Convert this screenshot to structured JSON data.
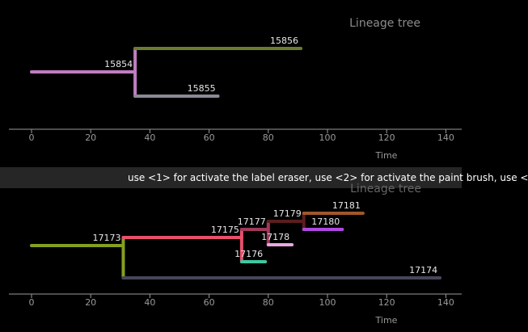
{
  "status_bar": {
    "message": "use <1> for activate the label eraser, use <2> for activate the paint brush, use <"
  },
  "chart_data": [
    {
      "type": "line",
      "title": "Lineage tree",
      "xlabel": "Time",
      "xlim": [
        -10,
        145
      ],
      "xticks": [
        0,
        20,
        40,
        60,
        80,
        100,
        120,
        140
      ],
      "grid": false,
      "tracks": [
        {
          "label": "15854",
          "x_start": 0,
          "x_end": 35,
          "level": 0.5,
          "color": "#c07ec0"
        },
        {
          "label": "15856",
          "x_start": 35,
          "x_end": 91,
          "level": 1,
          "color": "#6b7c2e"
        },
        {
          "label": "15855",
          "x_start": 35,
          "x_end": 63,
          "level": 0,
          "color": "#8a8a96"
        }
      ],
      "branches": [
        {
          "x": 35,
          "from_level": 0,
          "to_level": 1,
          "color": "#c07ec0"
        }
      ]
    },
    {
      "type": "line",
      "title": "Lineage tree",
      "xlabel": "Time",
      "xlim": [
        -10,
        145
      ],
      "xticks": [
        0,
        20,
        40,
        60,
        80,
        100,
        120,
        140
      ],
      "grid": false,
      "tracks": [
        {
          "label": "17173",
          "x_start": 0,
          "x_end": 31,
          "level": 2,
          "color": "#85a020"
        },
        {
          "label": "17175",
          "x_start": 31,
          "x_end": 71,
          "level": 3,
          "color": "#e8506a"
        },
        {
          "label": "17174",
          "x_start": 31,
          "x_end": 138,
          "level": 0,
          "color": "#46465a"
        },
        {
          "label": "17177",
          "x_start": 71,
          "x_end": 80,
          "level": 4,
          "color": "#a03a5a"
        },
        {
          "label": "17176",
          "x_start": 71,
          "x_end": 79,
          "level": 1,
          "color": "#3ec8a0"
        },
        {
          "label": "17179",
          "x_start": 80,
          "x_end": 92,
          "level": 5,
          "color": "#5a1e1e"
        },
        {
          "label": "17178",
          "x_start": 80,
          "x_end": 88,
          "level": 2.5,
          "color": "#e8a8e0"
        },
        {
          "label": "17181",
          "x_start": 92,
          "x_end": 112,
          "level": 6,
          "color": "#a0582a"
        },
        {
          "label": "17180",
          "x_start": 92,
          "x_end": 105,
          "level": 4.3,
          "color": "#b048e0"
        }
      ],
      "branches": [
        {
          "x": 31,
          "from_level": 0,
          "to_level": 3,
          "color": "#85a020"
        },
        {
          "x": 71,
          "from_level": 1,
          "to_level": 4,
          "color": "#e8506a"
        },
        {
          "x": 80,
          "from_level": 2.5,
          "to_level": 5,
          "color": "#a03a5a"
        },
        {
          "x": 92,
          "from_level": 4.3,
          "to_level": 6,
          "color": "#5a1e1e"
        }
      ]
    }
  ]
}
